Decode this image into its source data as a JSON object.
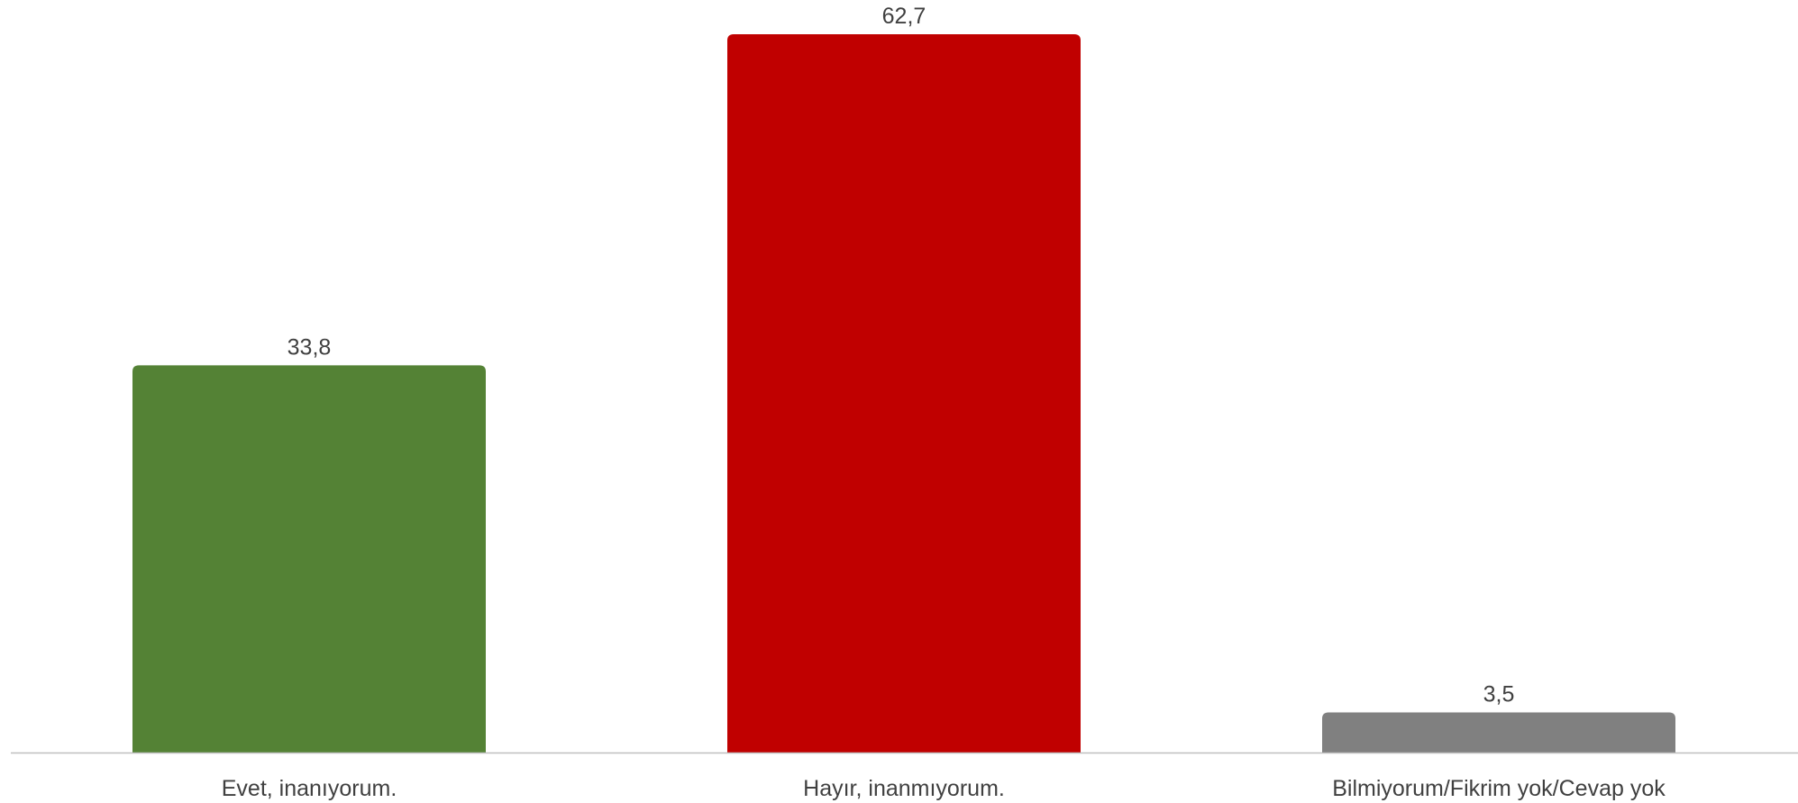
{
  "chart_data": {
    "type": "bar",
    "categories": [
      "Evet, inanıyorum.",
      "Hayır, inanmıyorum.",
      "Bilmiyorum/Fikrim yok/Cevap yok"
    ],
    "values": [
      33.8,
      62.7,
      3.5
    ],
    "value_labels": [
      "33,8",
      "62,7",
      "3,5"
    ],
    "colors": [
      "#548235",
      "#C00000",
      "#808080"
    ],
    "title": "",
    "xlabel": "",
    "ylabel": "",
    "ylim": [
      0,
      62.7
    ],
    "grid": false,
    "legend": "none"
  }
}
